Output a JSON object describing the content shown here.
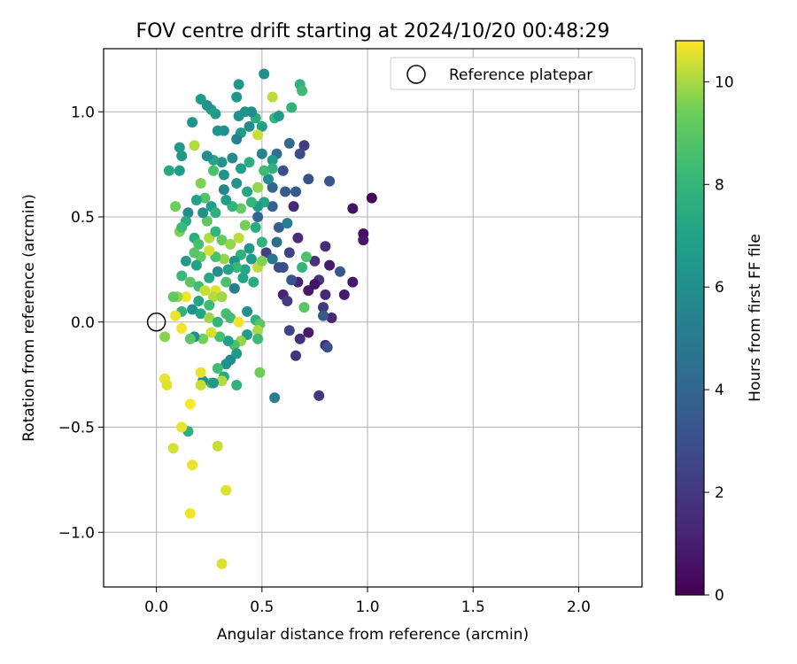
{
  "chart_data": {
    "type": "scatter",
    "title": "FOV centre drift starting at 2024/10/20 00:48:29",
    "xlabel": "Angular distance from reference (arcmin)",
    "ylabel": "Rotation from reference (arcmin)",
    "xlim": [
      -0.25,
      2.3
    ],
    "ylim": [
      -1.26,
      1.3
    ],
    "xticks": [
      0.0,
      0.5,
      1.0,
      1.5,
      2.0
    ],
    "xtick_labels": [
      "0.0",
      "0.5",
      "1.0",
      "1.5",
      "2.0"
    ],
    "yticks": [
      -1.0,
      -0.5,
      0.0,
      0.5,
      1.0
    ],
    "ytick_labels": [
      "−1.0",
      "−0.5",
      "0.0",
      "0.5",
      "1.0"
    ],
    "grid": true,
    "legend": {
      "placement": "top-right",
      "entries": [
        "Reference platepar"
      ]
    },
    "reference_point": {
      "x": 0.0,
      "y": 0.0
    },
    "colorbar": {
      "label": "Hours from first FF file",
      "colormap": "viridis",
      "range": [
        0,
        10.8
      ],
      "ticks": [
        0,
        2,
        4,
        6,
        8,
        10
      ],
      "tick_labels": [
        "0",
        "2",
        "4",
        "6",
        "8",
        "10"
      ]
    },
    "series": [
      {
        "columns": [
          "x",
          "y",
          "hours"
        ],
        "points": [
          [
            1.02,
            0.59,
            0.2
          ],
          [
            0.98,
            0.42,
            0.5
          ],
          [
            0.98,
            0.39,
            0.8
          ],
          [
            0.93,
            0.54,
            0.6
          ],
          [
            0.89,
            0.13,
            0.9
          ],
          [
            0.93,
            0.19,
            0.7
          ],
          [
            0.87,
            0.24,
            3.4
          ],
          [
            0.82,
            0.67,
            3.2
          ],
          [
            0.8,
            0.36,
            1.5
          ],
          [
            0.82,
            0.27,
            0.9
          ],
          [
            0.8,
            0.13,
            1.4
          ],
          [
            0.83,
            0.02,
            1.3
          ],
          [
            0.79,
            0.07,
            2.0
          ],
          [
            0.8,
            -0.11,
            1.5
          ],
          [
            0.81,
            -0.12,
            3.0
          ],
          [
            0.79,
            0.03,
            3.3
          ],
          [
            0.77,
            -0.35,
            1.9
          ],
          [
            0.7,
            0.84,
            2.2
          ],
          [
            0.68,
            0.8,
            2.8
          ],
          [
            0.67,
            0.4,
            1.6
          ],
          [
            0.65,
            0.55,
            1.4
          ],
          [
            0.72,
            0.68,
            3.1
          ],
          [
            0.67,
            0.19,
            1.2
          ],
          [
            0.72,
            0.15,
            0.8
          ],
          [
            0.75,
            0.29,
            1.7
          ],
          [
            0.77,
            0.2,
            1.9
          ],
          [
            0.75,
            0.18,
            0.6
          ],
          [
            0.72,
            -0.05,
            0.9
          ],
          [
            0.68,
            -0.08,
            1.6
          ],
          [
            0.66,
            -0.16,
            1.8
          ],
          [
            0.63,
            -0.04,
            2.5
          ],
          [
            0.6,
            0.13,
            1.2
          ],
          [
            0.62,
            0.1,
            2.2
          ],
          [
            0.56,
            -0.36,
            5.2
          ],
          [
            0.63,
            0.85,
            4.2
          ],
          [
            0.61,
            0.62,
            3.4
          ],
          [
            0.58,
            0.45,
            3.7
          ],
          [
            0.63,
            0.33,
            2.4
          ],
          [
            0.6,
            0.26,
            3.0
          ],
          [
            0.57,
            0.38,
            4.4
          ],
          [
            0.64,
            0.2,
            3.2
          ],
          [
            0.58,
            0.26,
            2.9
          ],
          [
            0.52,
            0.33,
            2.4
          ],
          [
            0.48,
            0.5,
            4.0
          ],
          [
            0.55,
            0.64,
            3.9
          ],
          [
            0.6,
            0.72,
            3.0
          ],
          [
            0.57,
            0.8,
            4.5
          ],
          [
            0.62,
            0.47,
            5.2
          ],
          [
            0.55,
            0.55,
            3.7
          ],
          [
            0.55,
            0.3,
            4.7
          ],
          [
            0.66,
            0.62,
            3.4
          ],
          [
            0.53,
            0.68,
            5.8
          ],
          [
            0.7,
            0.07,
            9.0
          ],
          [
            0.69,
            0.26,
            8.0
          ],
          [
            0.71,
            0.31,
            8.7
          ],
          [
            0.68,
            1.13,
            7.8
          ],
          [
            0.69,
            1.1,
            8.3
          ],
          [
            0.64,
            1.02,
            7.9
          ],
          [
            0.56,
            0.97,
            8.1
          ],
          [
            0.58,
            0.98,
            6.5
          ],
          [
            0.55,
            1.07,
            10.2
          ],
          [
            0.51,
            1.18,
            6.0
          ],
          [
            0.47,
            0.97,
            7.5
          ],
          [
            0.5,
            0.93,
            6.9
          ],
          [
            0.45,
            1.0,
            5.8
          ],
          [
            0.42,
            1.0,
            6.2
          ],
          [
            0.38,
            1.07,
            6.4
          ],
          [
            0.39,
            0.98,
            6.1
          ],
          [
            0.44,
            0.93,
            5.9
          ],
          [
            0.4,
            0.9,
            6.7
          ],
          [
            0.38,
            0.87,
            5.4
          ],
          [
            0.32,
            0.91,
            6.1
          ],
          [
            0.29,
            0.91,
            6.3
          ],
          [
            0.28,
            0.99,
            6.5
          ],
          [
            0.26,
            1.01,
            6.8
          ],
          [
            0.21,
            1.06,
            6.6
          ],
          [
            0.24,
            1.03,
            6.2
          ],
          [
            0.17,
            0.95,
            6.3
          ],
          [
            0.11,
            0.83,
            6.6
          ],
          [
            0.12,
            0.79,
            6.4
          ],
          [
            0.18,
            0.84,
            10.1
          ],
          [
            0.11,
            0.72,
            6.7
          ],
          [
            0.06,
            0.72,
            7.3
          ],
          [
            0.39,
            1.13,
            6.4
          ],
          [
            0.48,
            0.89,
            10.3
          ],
          [
            0.5,
            0.8,
            5.5
          ],
          [
            0.55,
            0.77,
            6.6
          ],
          [
            0.55,
            0.73,
            7.8
          ],
          [
            0.51,
            0.72,
            8.3
          ],
          [
            0.44,
            0.76,
            7.6
          ],
          [
            0.4,
            0.73,
            6.8
          ],
          [
            0.36,
            0.78,
            5.8
          ],
          [
            0.31,
            0.76,
            6.3
          ],
          [
            0.27,
            0.77,
            7.2
          ],
          [
            0.24,
            0.79,
            6.0
          ],
          [
            0.27,
            0.72,
            8.6
          ],
          [
            0.32,
            0.7,
            6.2
          ],
          [
            0.21,
            0.66,
            9.6
          ],
          [
            0.23,
            0.59,
            8.8
          ],
          [
            0.26,
            0.55,
            6.7
          ],
          [
            0.32,
            0.63,
            5.6
          ],
          [
            0.38,
            0.66,
            6.3
          ],
          [
            0.43,
            0.62,
            7.1
          ],
          [
            0.48,
            0.64,
            9.8
          ],
          [
            0.51,
            0.57,
            7.2
          ],
          [
            0.48,
            0.55,
            6.6
          ],
          [
            0.45,
            0.57,
            8.0
          ],
          [
            0.4,
            0.54,
            9.2
          ],
          [
            0.36,
            0.55,
            7.9
          ],
          [
            0.33,
            0.58,
            6.8
          ],
          [
            0.28,
            0.52,
            7.7
          ],
          [
            0.24,
            0.48,
            9.0
          ],
          [
            0.22,
            0.52,
            6.1
          ],
          [
            0.19,
            0.58,
            7.0
          ],
          [
            0.15,
            0.52,
            5.8
          ],
          [
            0.14,
            0.48,
            7.4
          ],
          [
            0.09,
            0.55,
            9.4
          ],
          [
            0.11,
            0.43,
            9.6
          ],
          [
            0.12,
            0.45,
            8.2
          ],
          [
            0.18,
            0.4,
            7.6
          ],
          [
            0.2,
            0.37,
            8.5
          ],
          [
            0.25,
            0.4,
            10.1
          ],
          [
            0.28,
            0.43,
            8.0
          ],
          [
            0.31,
            0.39,
            9.2
          ],
          [
            0.35,
            0.37,
            9.8
          ],
          [
            0.39,
            0.4,
            10.2
          ],
          [
            0.42,
            0.46,
            9.5
          ],
          [
            0.47,
            0.45,
            7.4
          ],
          [
            0.5,
            0.38,
            7.9
          ],
          [
            0.44,
            0.35,
            6.4
          ],
          [
            0.4,
            0.32,
            7.8
          ],
          [
            0.37,
            0.29,
            6.2
          ],
          [
            0.32,
            0.3,
            9.8
          ],
          [
            0.28,
            0.31,
            8.6
          ],
          [
            0.25,
            0.34,
            10.4
          ],
          [
            0.21,
            0.31,
            9.2
          ],
          [
            0.18,
            0.33,
            8.9
          ],
          [
            0.19,
            0.27,
            6.9
          ],
          [
            0.14,
            0.29,
            6.6
          ],
          [
            0.12,
            0.22,
            8.2
          ],
          [
            0.16,
            0.19,
            9.0
          ],
          [
            0.2,
            0.17,
            8.4
          ],
          [
            0.25,
            0.21,
            7.3
          ],
          [
            0.29,
            0.24,
            5.9
          ],
          [
            0.33,
            0.19,
            8.6
          ],
          [
            0.37,
            0.16,
            5.2
          ],
          [
            0.41,
            0.21,
            7.0
          ],
          [
            0.46,
            0.19,
            7.5
          ],
          [
            0.48,
            0.26,
            10.2
          ],
          [
            0.5,
            0.29,
            9.6
          ],
          [
            0.45,
            0.3,
            6.6
          ],
          [
            0.42,
            0.25,
            7.2
          ],
          [
            0.38,
            0.26,
            8.1
          ],
          [
            0.34,
            0.25,
            6.9
          ],
          [
            0.23,
            0.15,
            10.3
          ],
          [
            0.28,
            0.15,
            10.5
          ],
          [
            0.27,
            0.12,
            10.1
          ],
          [
            0.31,
            0.12,
            9.9
          ],
          [
            0.25,
            0.08,
            8.3
          ],
          [
            0.2,
            0.1,
            7.1
          ],
          [
            0.14,
            0.12,
            10.7
          ],
          [
            0.1,
            0.12,
            9.8
          ],
          [
            0.08,
            0.12,
            9.1
          ],
          [
            0.12,
            0.05,
            7.8
          ],
          [
            0.17,
            0.06,
            6.2
          ],
          [
            0.21,
            0.04,
            7.1
          ],
          [
            0.25,
            0.02,
            9.9
          ],
          [
            0.29,
            0.0,
            8.0
          ],
          [
            0.33,
            0.04,
            8.5
          ],
          [
            0.35,
            0.02,
            8.4
          ],
          [
            0.39,
            0.0,
            10.7
          ],
          [
            0.43,
            0.05,
            6.1
          ],
          [
            0.47,
            0.01,
            7.9
          ],
          [
            0.49,
            -0.01,
            9.0
          ],
          [
            0.48,
            -0.04,
            10.0
          ],
          [
            0.48,
            -0.08,
            8.3
          ],
          [
            0.43,
            -0.06,
            6.7
          ],
          [
            0.4,
            -0.09,
            9.8
          ],
          [
            0.37,
            -0.11,
            8.6
          ],
          [
            0.34,
            -0.09,
            6.9
          ],
          [
            0.3,
            -0.07,
            8.5
          ],
          [
            0.26,
            -0.05,
            10.4
          ],
          [
            0.22,
            -0.08,
            9.5
          ],
          [
            0.18,
            -0.07,
            6.0
          ],
          [
            0.16,
            -0.08,
            9.0
          ],
          [
            0.12,
            -0.03,
            10.7
          ],
          [
            0.09,
            0.03,
            10.6
          ],
          [
            0.04,
            -0.07,
            9.7
          ],
          [
            0.38,
            -0.15,
            6.6
          ],
          [
            0.35,
            -0.18,
            5.8
          ],
          [
            0.33,
            -0.2,
            6.1
          ],
          [
            0.29,
            -0.22,
            8.4
          ],
          [
            0.26,
            -0.29,
            8.7
          ],
          [
            0.32,
            -0.26,
            7.4
          ],
          [
            0.22,
            -0.28,
            6.0
          ],
          [
            0.21,
            -0.3,
            10.3
          ],
          [
            0.31,
            -0.28,
            10.1
          ],
          [
            0.27,
            -0.29,
            6.4
          ],
          [
            0.38,
            -0.3,
            7.8
          ],
          [
            0.49,
            -0.24,
            9.4
          ],
          [
            0.21,
            -0.24,
            10.6
          ],
          [
            0.04,
            -0.27,
            10.6
          ],
          [
            0.05,
            -0.3,
            10.5
          ],
          [
            0.16,
            -0.39,
            10.8
          ],
          [
            0.15,
            -0.52,
            7.7
          ],
          [
            0.12,
            -0.5,
            10.6
          ],
          [
            0.08,
            -0.6,
            10.4
          ],
          [
            0.29,
            -0.59,
            10.3
          ],
          [
            0.17,
            -0.68,
            10.6
          ],
          [
            0.33,
            -0.8,
            10.5
          ],
          [
            0.16,
            -0.91,
            10.7
          ],
          [
            0.31,
            -1.15,
            10.5
          ]
        ]
      }
    ]
  }
}
